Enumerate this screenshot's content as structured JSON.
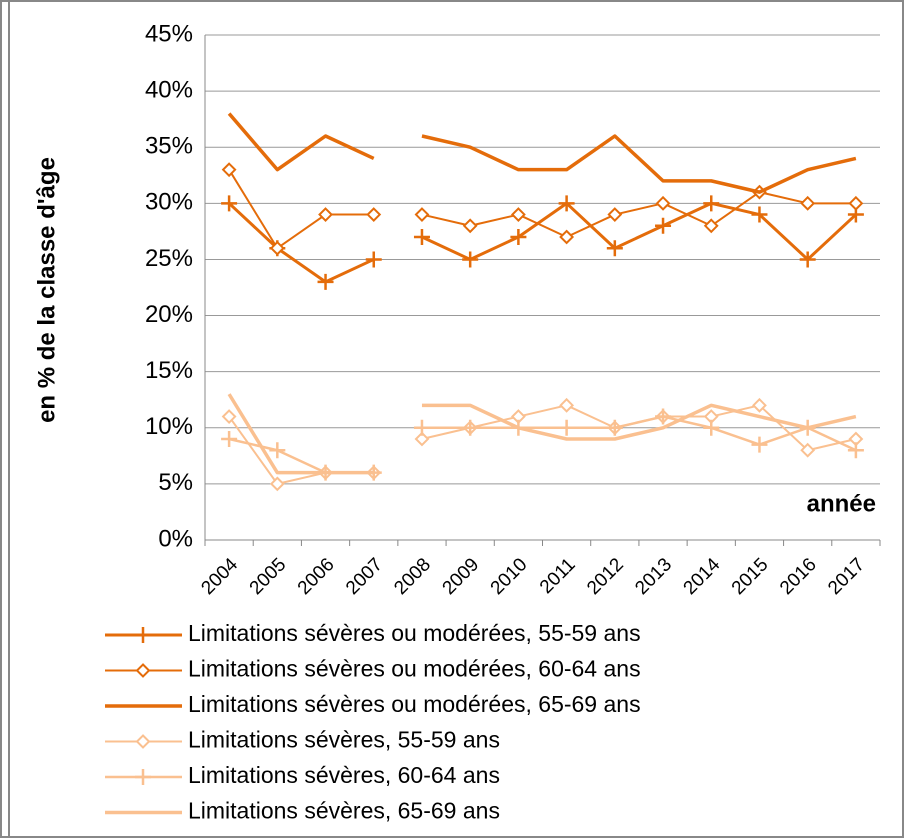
{
  "chart_data": {
    "type": "line",
    "y_label": "en % de la classe d'âge",
    "x_label": "année",
    "categories": [
      "2004",
      "2005",
      "2006",
      "2007",
      "2008",
      "2009",
      "2010",
      "2011",
      "2012",
      "2013",
      "2014",
      "2015",
      "2016",
      "2017"
    ],
    "break_after_index": 3,
    "ylim": [
      0,
      45
    ],
    "yticks": [
      {
        "value": 0,
        "label": "0%"
      },
      {
        "value": 5,
        "label": "5%"
      },
      {
        "value": 10,
        "label": "10%"
      },
      {
        "value": 15,
        "label": "15%"
      },
      {
        "value": 20,
        "label": "20%"
      },
      {
        "value": 25,
        "label": "25%"
      },
      {
        "value": 30,
        "label": "30%"
      },
      {
        "value": 35,
        "label": "35%"
      },
      {
        "value": 40,
        "label": "40%"
      },
      {
        "value": 45,
        "label": "45%"
      }
    ],
    "grid": true,
    "series": [
      {
        "name": "Limitations sévères ou modérées, 55-59 ans",
        "color": "#e46c0a",
        "marker": "plus",
        "width": 3,
        "values": [
          30,
          26,
          23,
          25,
          27,
          25,
          27,
          30,
          26,
          28,
          30,
          29,
          25,
          29
        ]
      },
      {
        "name": "Limitations sévères ou modérées, 60-64 ans",
        "color": "#e46c0a",
        "marker": "diamond",
        "width": 2,
        "values": [
          33,
          26,
          29,
          29,
          29,
          28,
          29,
          27,
          29,
          30,
          28,
          31,
          30,
          30
        ]
      },
      {
        "name": "Limitations sévères ou modérées, 65-69 ans",
        "color": "#e46c0a",
        "marker": "none",
        "width": 3.5,
        "values": [
          38,
          33,
          36,
          34,
          36,
          35,
          33,
          33,
          36,
          32,
          32,
          31,
          33,
          34
        ]
      },
      {
        "name": "Limitations sévères, 55-59 ans",
        "color": "#fac090",
        "marker": "diamond",
        "width": 2,
        "values": [
          11,
          5,
          6,
          6,
          9,
          10,
          11,
          12,
          10,
          11,
          11,
          12,
          8,
          9
        ]
      },
      {
        "name": "Limitations sévères, 60-64 ans",
        "color": "#fac090",
        "marker": "plus",
        "width": 2.5,
        "values": [
          9,
          8,
          6,
          6,
          10,
          10,
          10,
          10,
          10,
          11,
          10,
          8.5,
          10,
          8
        ]
      },
      {
        "name": "Limitations sévères, 65-69 ans",
        "color": "#fac090",
        "marker": "none",
        "width": 3.5,
        "values": [
          13,
          6,
          6,
          6,
          12,
          12,
          10,
          9,
          9,
          10,
          12,
          11,
          10,
          11
        ]
      }
    ]
  }
}
